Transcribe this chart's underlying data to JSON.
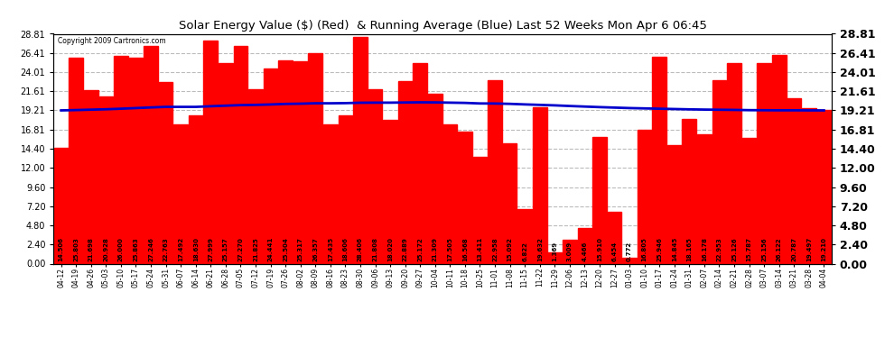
{
  "title": "Solar Energy Value ($) (Red)  & Running Average (Blue) Last 52 Weeks Mon Apr 6 06:45",
  "copyright": "Copyright 2009 Cartronics.com",
  "bar_color": "#ff0000",
  "line_color": "#0000cc",
  "background_color": "#ffffff",
  "grid_color": "#bbbbbb",
  "yticks": [
    0.0,
    2.4,
    4.8,
    7.2,
    9.6,
    12.0,
    14.4,
    16.81,
    19.21,
    21.61,
    24.01,
    26.41,
    28.81
  ],
  "categories": [
    "04-12",
    "04-19",
    "04-26",
    "05-03",
    "05-10",
    "05-17",
    "05-24",
    "05-31",
    "06-07",
    "06-14",
    "06-21",
    "06-28",
    "07-05",
    "07-12",
    "07-19",
    "07-26",
    "08-02",
    "08-09",
    "08-16",
    "08-23",
    "08-30",
    "09-06",
    "09-13",
    "09-20",
    "09-27",
    "10-04",
    "10-11",
    "10-18",
    "10-25",
    "11-01",
    "11-08",
    "11-15",
    "11-22",
    "11-29",
    "12-06",
    "12-13",
    "12-20",
    "12-27",
    "01-03",
    "01-10",
    "01-17",
    "01-24",
    "01-31",
    "02-07",
    "02-14",
    "02-21",
    "02-28",
    "03-07",
    "03-14",
    "03-21",
    "03-28",
    "04-04"
  ],
  "values": [
    14.506,
    25.803,
    21.698,
    20.928,
    26.0,
    25.863,
    27.246,
    22.763,
    17.492,
    18.63,
    27.999,
    25.157,
    27.27,
    21.825,
    24.441,
    25.504,
    25.317,
    26.357,
    17.435,
    18.606,
    28.406,
    21.808,
    18.02,
    22.889,
    25.172,
    21.309,
    17.505,
    16.568,
    13.411,
    22.958,
    15.092,
    6.822,
    19.632,
    1.369,
    3.009,
    4.466,
    15.91,
    6.454,
    0.772,
    16.805,
    25.946,
    14.845,
    18.165,
    16.178,
    22.953,
    25.126,
    15.787,
    25.156,
    26.122,
    20.787,
    19.497,
    19.21
  ],
  "running_avg": [
    19.21,
    19.25,
    19.3,
    19.35,
    19.42,
    19.5,
    19.58,
    19.65,
    19.65,
    19.65,
    19.73,
    19.8,
    19.87,
    19.9,
    19.95,
    20.02,
    20.05,
    20.1,
    20.1,
    20.12,
    20.17,
    20.18,
    20.18,
    20.2,
    20.22,
    20.21,
    20.18,
    20.15,
    20.08,
    20.07,
    20.03,
    19.96,
    19.9,
    19.84,
    19.76,
    19.69,
    19.62,
    19.56,
    19.5,
    19.46,
    19.42,
    19.38,
    19.34,
    19.31,
    19.29,
    19.27,
    19.24,
    19.23,
    19.22,
    19.22,
    19.21,
    19.21
  ],
  "label_fontsize": 5.0,
  "title_fontsize": 9.5,
  "ytick_fontsize_left": 7.0,
  "ytick_fontsize_right": 9.0,
  "xtick_fontsize": 5.5
}
